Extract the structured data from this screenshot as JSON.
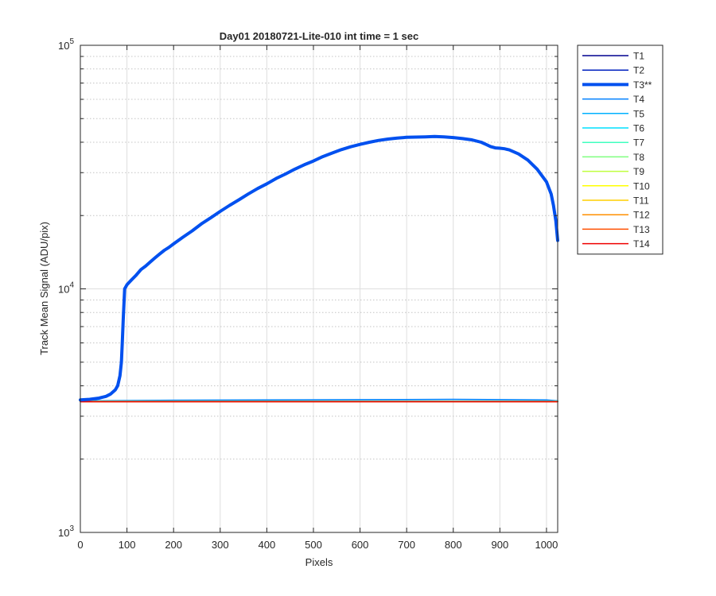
{
  "chart_data": {
    "type": "line",
    "title": "Day01 20180721-Lite-010 int time = 1 sec",
    "xlabel": "Pixels",
    "ylabel": "Track Mean Signal (ADU/pix)",
    "xlim": [
      0,
      1024
    ],
    "ylim": [
      1000,
      100000
    ],
    "yscale": "log",
    "grid": true,
    "legend_position": "outside-top-right",
    "x_ticks": [
      "0",
      "100",
      "200",
      "300",
      "400",
      "500",
      "600",
      "700",
      "800",
      "900",
      "1000"
    ],
    "y_ticks": [
      {
        "base": "10",
        "exp": "3"
      },
      {
        "base": "10",
        "exp": "4"
      },
      {
        "base": "10",
        "exp": "5"
      }
    ],
    "series": [
      {
        "name": "T1",
        "color": "#00008f",
        "width": 1.5,
        "x": [
          0,
          1024
        ],
        "y": [
          3450,
          3450
        ]
      },
      {
        "name": "T2",
        "color": "#0020bf",
        "width": 1.5,
        "x": [
          0,
          1024
        ],
        "y": [
          3460,
          3460
        ]
      },
      {
        "name": "T3**",
        "color": "#0050ef",
        "width": 4,
        "x": [
          0,
          20,
          40,
          55,
          65,
          75,
          80,
          85,
          88,
          90,
          92,
          95,
          100,
          110,
          120,
          130,
          140,
          150,
          160,
          170,
          180,
          190,
          200,
          220,
          240,
          260,
          280,
          300,
          320,
          340,
          360,
          380,
          400,
          420,
          440,
          460,
          480,
          500,
          520,
          540,
          560,
          580,
          600,
          620,
          640,
          660,
          680,
          700,
          720,
          740,
          760,
          780,
          800,
          820,
          840,
          860,
          870,
          880,
          890,
          900,
          910,
          920,
          940,
          960,
          980,
          1000,
          1010,
          1015,
          1020,
          1024
        ],
        "y": [
          3500,
          3520,
          3560,
          3620,
          3700,
          3850,
          4000,
          4400,
          5000,
          6000,
          7500,
          10000,
          10400,
          10900,
          11400,
          12000,
          12400,
          12900,
          13400,
          13900,
          14400,
          14800,
          15300,
          16300,
          17300,
          18500,
          19600,
          20800,
          22000,
          23200,
          24500,
          25800,
          27000,
          28400,
          29600,
          31000,
          32300,
          33500,
          34900,
          36100,
          37300,
          38300,
          39200,
          40000,
          40700,
          41200,
          41600,
          41900,
          42000,
          42100,
          42200,
          42100,
          41800,
          41400,
          40900,
          40000,
          39200,
          38400,
          37900,
          37800,
          37600,
          37200,
          35800,
          33800,
          31000,
          27500,
          24500,
          22000,
          19000,
          15800
        ]
      },
      {
        "name": "T4",
        "color": "#0080ff",
        "width": 1.5,
        "x": [
          0,
          200,
          400,
          600,
          800,
          1000,
          1024
        ],
        "y": [
          3470,
          3490,
          3500,
          3510,
          3520,
          3500,
          3470
        ]
      },
      {
        "name": "T5",
        "color": "#00b0ff",
        "width": 1.5,
        "x": [
          0,
          1024
        ],
        "y": [
          3465,
          3465
        ]
      },
      {
        "name": "T6",
        "color": "#00e0ff",
        "width": 1.5,
        "x": [
          0,
          1024
        ],
        "y": [
          3460,
          3460
        ]
      },
      {
        "name": "T7",
        "color": "#3fffbf",
        "width": 1.5,
        "x": [
          0,
          1024
        ],
        "y": [
          3455,
          3455
        ]
      },
      {
        "name": "T8",
        "color": "#7fff7f",
        "width": 1.5,
        "x": [
          0,
          1024
        ],
        "y": [
          3452,
          3452
        ]
      },
      {
        "name": "T9",
        "color": "#bfff3f",
        "width": 1.5,
        "x": [
          0,
          1024
        ],
        "y": [
          3450,
          3450
        ]
      },
      {
        "name": "T10",
        "color": "#ffff00",
        "width": 1.5,
        "x": [
          0,
          1024
        ],
        "y": [
          3448,
          3448
        ]
      },
      {
        "name": "T11",
        "color": "#ffcf00",
        "width": 1.5,
        "x": [
          0,
          1024
        ],
        "y": [
          3446,
          3446
        ]
      },
      {
        "name": "T12",
        "color": "#ff8f00",
        "width": 1.5,
        "x": [
          0,
          1024
        ],
        "y": [
          3444,
          3444
        ]
      },
      {
        "name": "T13",
        "color": "#ff4f00",
        "width": 1.5,
        "x": [
          0,
          1024
        ],
        "y": [
          3442,
          3442
        ]
      },
      {
        "name": "T14",
        "color": "#ef0000",
        "width": 1.5,
        "x": [
          0,
          1024
        ],
        "y": [
          3440,
          3440
        ]
      }
    ]
  }
}
